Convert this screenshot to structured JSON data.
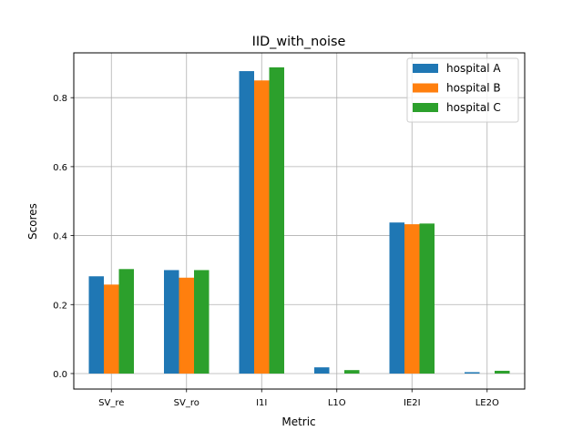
{
  "chart_data": {
    "type": "bar",
    "title": "IID_with_noise",
    "xlabel": "Metric",
    "ylabel": "Scores",
    "categories": [
      "SV_re",
      "SV_ro",
      "I1I",
      "L1O",
      "IE2I",
      "LE2O"
    ],
    "series": [
      {
        "name": "hospital A",
        "color": "#1f77b4",
        "values": [
          0.282,
          0.3,
          0.877,
          0.018,
          0.438,
          0.004
        ]
      },
      {
        "name": "hospital B",
        "color": "#ff7f0e",
        "values": [
          0.258,
          0.278,
          0.85,
          0.0,
          0.433,
          0.0
        ]
      },
      {
        "name": "hospital C",
        "color": "#2ca02c",
        "values": [
          0.303,
          0.3,
          0.888,
          0.01,
          0.435,
          0.008
        ]
      }
    ],
    "yticks": [
      "0.0",
      "0.2",
      "0.4",
      "0.6",
      "0.8"
    ],
    "ylim": [
      -0.045,
      0.93
    ],
    "grid": true,
    "legend_position": "top-right"
  }
}
